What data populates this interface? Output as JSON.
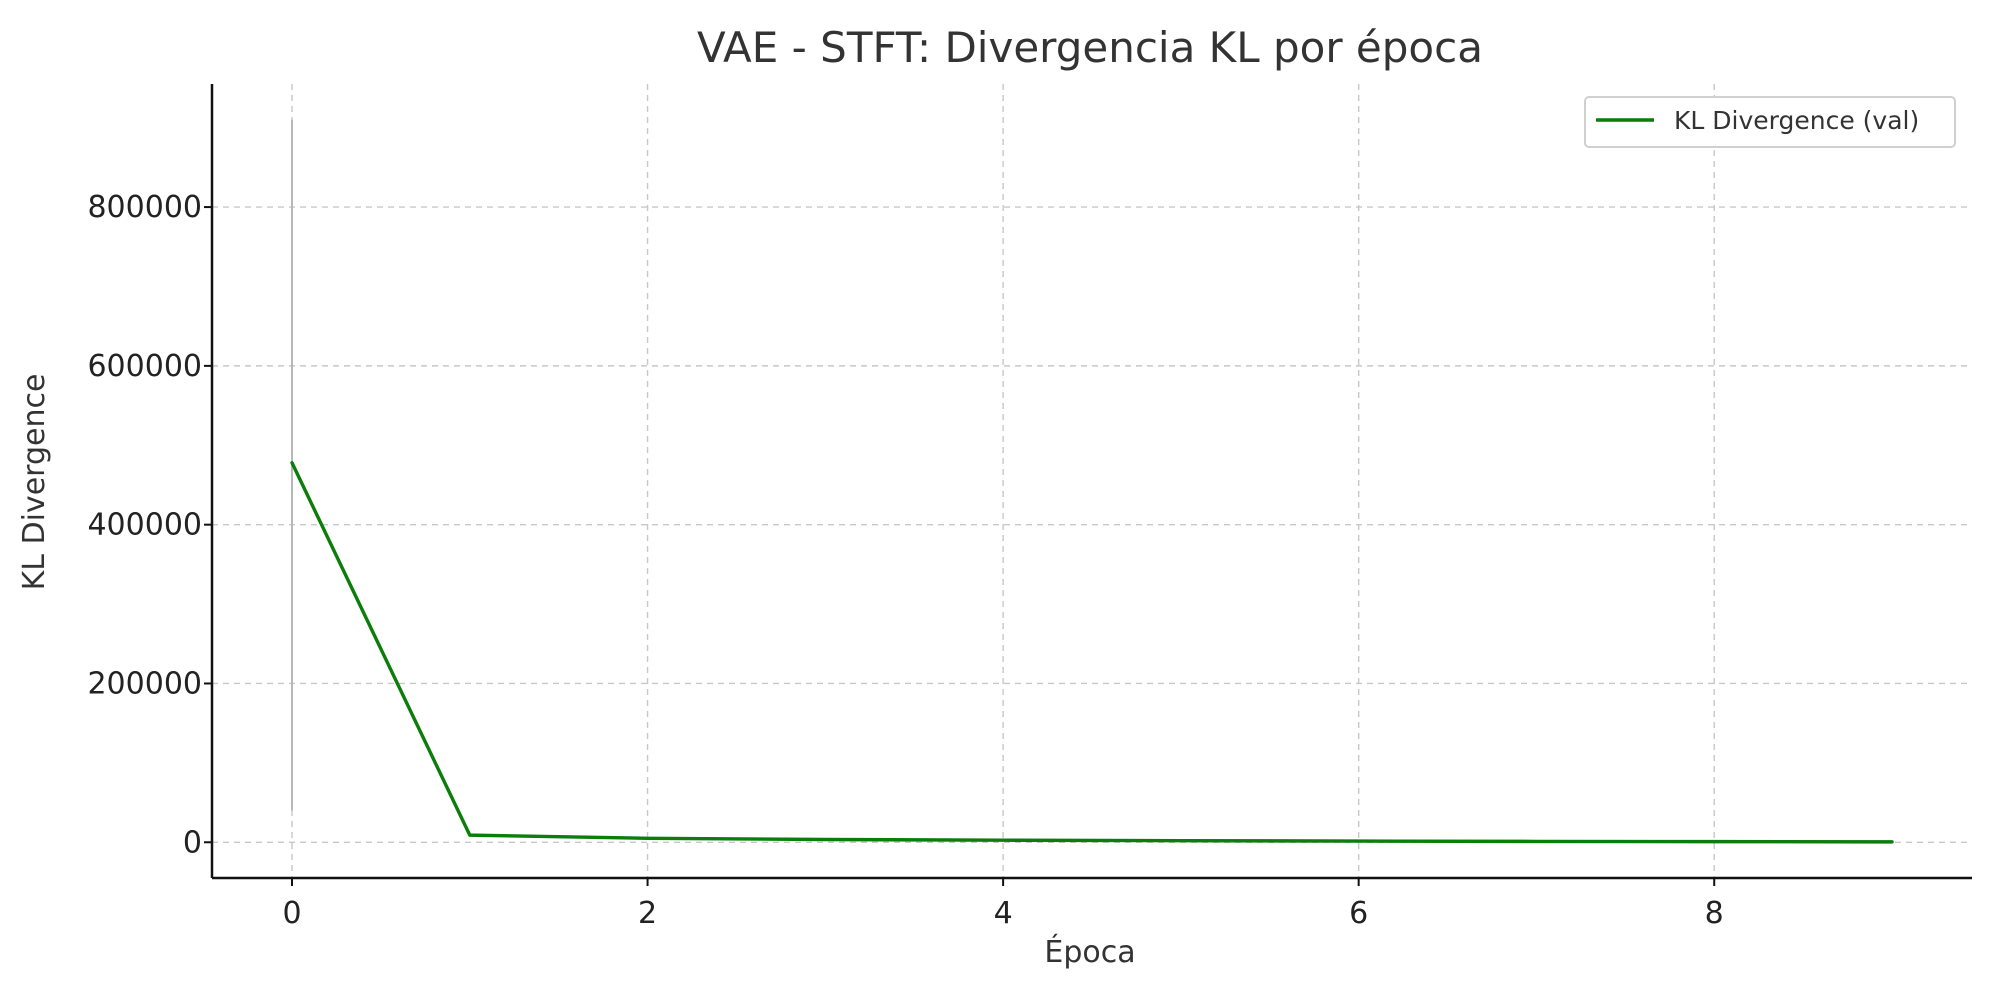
{
  "chart_data": {
    "type": "line",
    "title": "VAE - STFT: Divergencia KL por época",
    "xlabel": "Época",
    "ylabel": "KL Divergence",
    "x": [
      0,
      1,
      2,
      3,
      4,
      5,
      6,
      7,
      8,
      9
    ],
    "series": [
      {
        "name": "KL Divergence (val)",
        "color": "#0a7d0a",
        "values": [
          478000,
          9000,
          5000,
          3500,
          2600,
          2000,
          1500,
          1100,
          800,
          500
        ]
      }
    ],
    "xlim": [
      -0.45,
      9.45
    ],
    "ylim": [
      -45000,
      955000
    ],
    "xticks": [
      0,
      2,
      4,
      6,
      8
    ],
    "yticks": [
      0,
      200000,
      400000,
      600000,
      800000
    ],
    "grid": true,
    "legend_position": "top-right",
    "marker_line": {
      "x": 0,
      "y_from": 40000,
      "y_to": 910000,
      "color": "#b8b8b8"
    }
  }
}
